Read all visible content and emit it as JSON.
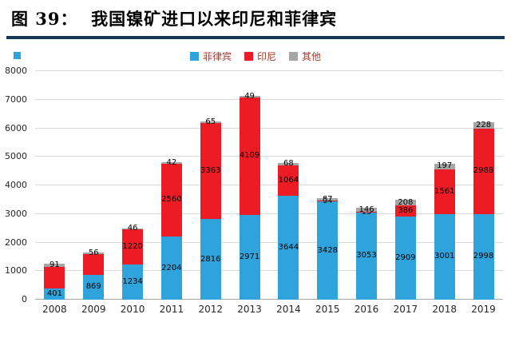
{
  "header": {
    "title": "图 39：  我国镍矿进口以来印尼和菲律宾"
  },
  "styles": {
    "underline_color": "#16365C",
    "bullet_color": "#2FA3DC",
    "legend_text_color": "#A53A2D",
    "gridline_color": "#D9D9D9"
  },
  "chart_data": {
    "type": "bar",
    "stacked": true,
    "title": "我国镍矿进口以来印尼和菲律宾",
    "categories": [
      "2008",
      "2009",
      "2010",
      "2011",
      "2012",
      "2013",
      "2014",
      "2015",
      "2016",
      "2017",
      "2018",
      "2019"
    ],
    "series": [
      {
        "name": "菲律宾",
        "color": "#2FA3DC",
        "values": [
          401,
          869,
          1234,
          2204,
          2816,
          2971,
          3644,
          3428,
          3053,
          2909,
          3001,
          2998
        ],
        "labels": [
          401,
          869,
          1234,
          2204,
          2816,
          2971,
          3644,
          3428,
          3053,
          2909,
          3001,
          2998
        ]
      },
      {
        "name": "印尼",
        "color": "#ED1C24",
        "values": [
          760,
          730,
          1220,
          2560,
          3363,
          4109,
          1064,
          34,
          15,
          386,
          1561,
          2988
        ],
        "labels": [
          null,
          null,
          1220,
          2560,
          3363,
          4109,
          1064,
          34,
          15,
          386,
          1561,
          2988
        ]
      },
      {
        "name": "其他",
        "color": "#A6A6A6",
        "values": [
          91,
          56,
          46,
          42,
          65,
          49,
          68,
          87,
          146,
          208,
          197,
          228
        ],
        "labels": [
          91,
          56,
          46,
          42,
          65,
          49,
          68,
          87,
          146,
          208,
          197,
          228
        ]
      }
    ],
    "xlabel": "",
    "ylabel": "",
    "ylim": [
      0,
      8000
    ],
    "yticks": [
      0,
      1000,
      2000,
      3000,
      4000,
      5000,
      6000,
      7000,
      8000
    ],
    "grid": true,
    "legend_position": "top-center"
  }
}
